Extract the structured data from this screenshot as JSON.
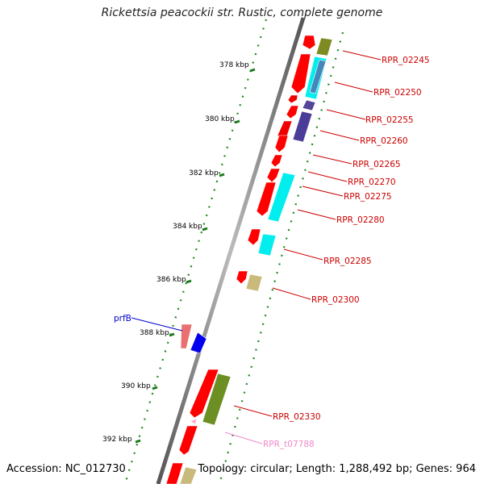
{
  "title": "Rickettsia peacockii str. Rustic, complete genome",
  "footer": {
    "accession": "Accession: NC_012730",
    "stats": "Topology: circular; Length: 1,288,492 bp; Genes: 964"
  },
  "ruler_labels": [
    "378 kbp",
    "380 kbp",
    "382 kbp",
    "384 kbp",
    "386 kbp",
    "388 kbp",
    "390 kbp",
    "392 kbp"
  ],
  "gene_labels": [
    "RPR_02245",
    "RPR_02250",
    "RPR_02255",
    "RPR_02260",
    "RPR_02265",
    "RPR_02270",
    "RPR_02275",
    "RPR_02280",
    "RPR_02285",
    "RPR_02300",
    "RPR_02330",
    "RPR_t07788"
  ],
  "named_gene": "prfB",
  "colors": {
    "gene_label": "#cc0000",
    "trna_label": "#ee88cc",
    "named_gene_label": "#0000cc",
    "ruler": "#228822",
    "backbone": "#888888"
  }
}
